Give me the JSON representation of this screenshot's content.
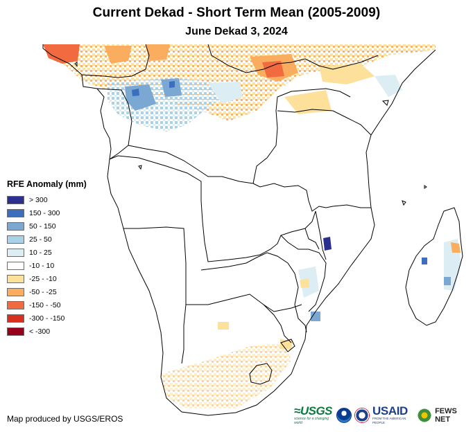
{
  "title": "Current Dekad - Short Term Mean (2005-2009)",
  "subtitle": "June Dekad 3, 2024",
  "legend": {
    "title": "RFE Anomaly (mm)",
    "items": [
      {
        "label": "> 300",
        "color": "#2b2f8f"
      },
      {
        "label": "150 - 300",
        "color": "#3b6fbd"
      },
      {
        "label": "50 - 150",
        "color": "#7ba7d3"
      },
      {
        "label": "25 - 50",
        "color": "#a9d2e8"
      },
      {
        "label": "10 - 25",
        "color": "#dcedf4"
      },
      {
        "label": "-10 - 10",
        "color": "#ffffff"
      },
      {
        "label": "-25 - -10",
        "color": "#fde19a"
      },
      {
        "label": "-50 - -25",
        "color": "#fbad5f"
      },
      {
        "label": "-150 - -50",
        "color": "#f26a3f"
      },
      {
        "label": "-300 - -150",
        "color": "#d7301f"
      },
      {
        "label": "< -300",
        "color": "#99001c"
      }
    ]
  },
  "credit": "Map produced by USGS/EROS",
  "logos": {
    "usgs": "USGS",
    "usgs_tagline": "science for a changing world",
    "usaid": "USAID",
    "usaid_tagline": "FROM THE AMERICAN PEOPLE",
    "fews": "FEWS NET"
  }
}
